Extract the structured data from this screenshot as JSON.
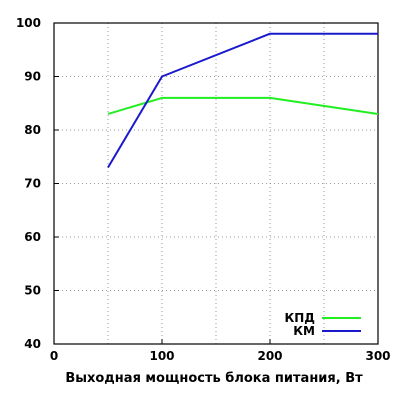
{
  "chart_data": {
    "type": "line",
    "title": "",
    "xlabel": "Выходная мощность блока питания, Вт",
    "ylabel": "",
    "xlim": [
      0,
      300
    ],
    "ylim": [
      40,
      100
    ],
    "xticks": [
      0,
      100,
      200,
      300
    ],
    "yticks": [
      40,
      50,
      60,
      70,
      80,
      90,
      100
    ],
    "grid": "dotted",
    "legend_position": "bottom-right",
    "series": [
      {
        "name": "КПД",
        "color": "#22ee22",
        "x": [
          50,
          100,
          200,
          300
        ],
        "y": [
          83,
          86,
          86,
          83
        ]
      },
      {
        "name": "КМ",
        "color": "#1a1acc",
        "x": [
          50,
          100,
          200,
          300
        ],
        "y": [
          73,
          90,
          98,
          98
        ]
      }
    ]
  }
}
